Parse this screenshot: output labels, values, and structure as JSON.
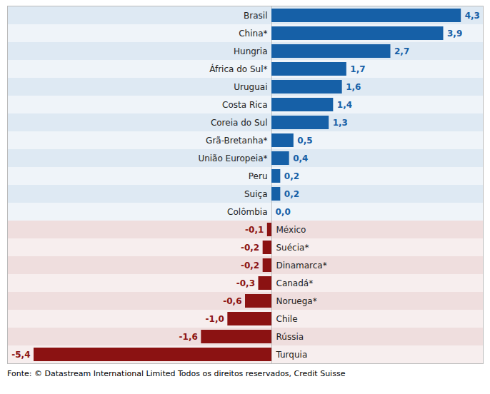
{
  "chart_data": {
    "type": "bar",
    "orientation": "horizontal",
    "categories": [
      "Brasil",
      "China*",
      "Hungria",
      "África do Sul*",
      "Uruguai",
      "Costa Rica",
      "Coreia do Sul",
      "Grã-Bretanha*",
      "União Europeia*",
      "Peru",
      "Suiça",
      "Colômbia",
      "México",
      "Suécia*",
      "Dinamarca*",
      "Canadá*",
      "Noruega*",
      "Chile",
      "Rússia",
      "Turquia"
    ],
    "values": [
      4.3,
      3.9,
      2.7,
      1.7,
      1.6,
      1.4,
      1.3,
      0.5,
      0.4,
      0.2,
      0.2,
      0.0,
      -0.1,
      -0.2,
      -0.2,
      -0.3,
      -0.6,
      -1.0,
      -1.6,
      -5.4
    ],
    "value_labels": [
      "4,3",
      "3,9",
      "2,7",
      "1,7",
      "1,6",
      "1,4",
      "1,3",
      "0,5",
      "0,4",
      "0,2",
      "0,2",
      "0,0",
      "-0,1",
      "-0,2",
      "-0,2",
      "-0,3",
      "-0,6",
      "-1,0",
      "-1,6",
      "-5,4"
    ],
    "colors": [
      "#1660A7",
      "#1660A7",
      "#1660A7",
      "#1660A7",
      "#1660A7",
      "#1660A7",
      "#1660A7",
      "#1660A7",
      "#1660A7",
      "#1660A7",
      "#1660A7",
      "#1660A7",
      "#8B1212",
      "#8B1212",
      "#8B1212",
      "#8B1212",
      "#8B1212",
      "#8B1212",
      "#8B1212",
      "#8B1212"
    ],
    "xlim": [
      -6.0,
      4.8
    ],
    "data_labels": true,
    "tick_labels": "y",
    "grid": false,
    "caption": "Fonte: © Datastream International Limited Todos os direitos reservados, Credit Suisse"
  }
}
